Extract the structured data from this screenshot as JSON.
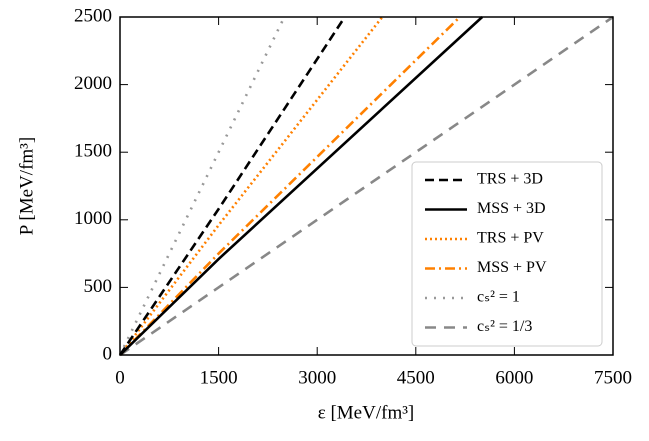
{
  "chart_data": {
    "type": "line",
    "xlabel": "ε [MeV/fm³]",
    "ylabel": "P [MeV/fm³]",
    "xlim": [
      0,
      7500
    ],
    "ylim": [
      0,
      2500
    ],
    "xticks": [
      0,
      1500,
      3000,
      4500,
      6000,
      7500
    ],
    "yticks": [
      0,
      500,
      1000,
      1500,
      2000,
      2500
    ],
    "legend": "lower right",
    "series": [
      {
        "name": "TRS + 3D",
        "color": "#000000",
        "style": "dashed",
        "x": [
          0,
          1500,
          3420
        ],
        "values": [
          0,
          1080,
          2500
        ]
      },
      {
        "name": "MSS + 3D",
        "color": "#000000",
        "style": "solid",
        "x": [
          0,
          1500,
          5510
        ],
        "values": [
          0,
          710,
          2500
        ]
      },
      {
        "name": "TRS + PV",
        "color": "#ff8000",
        "style": "dotted",
        "x": [
          0,
          1500,
          3990
        ],
        "values": [
          0,
          960,
          2500
        ]
      },
      {
        "name": "MSS + PV",
        "color": "#ff8000",
        "style": "dashdot",
        "x": [
          0,
          1500,
          5170
        ],
        "values": [
          0,
          750,
          2500
        ]
      },
      {
        "name": "cₛ² = 1",
        "color": "#999999",
        "style": "sparsedotted",
        "x": [
          0,
          2500
        ],
        "values": [
          0,
          2500
        ]
      },
      {
        "name": "cₛ² = 1/3",
        "color": "#888888",
        "style": "longdashed",
        "x": [
          0,
          7500
        ],
        "values": [
          0,
          2500
        ]
      }
    ]
  }
}
